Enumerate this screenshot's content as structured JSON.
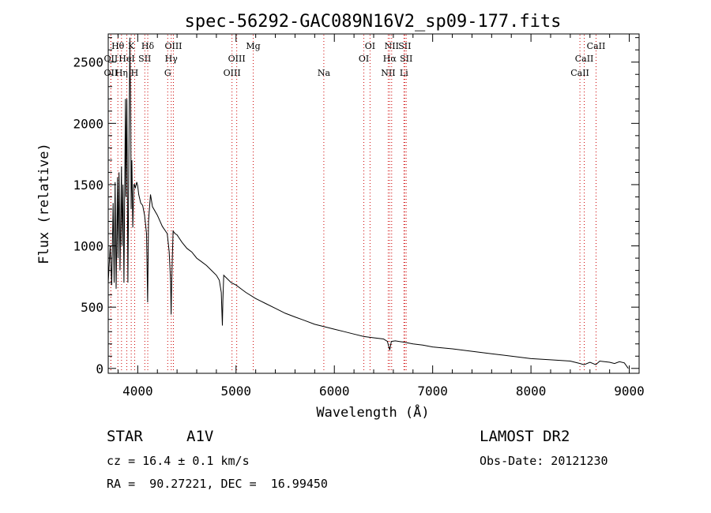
{
  "chart_data": {
    "type": "line",
    "title": "spec-56292-GAC089N16V2_sp09-177.fits",
    "xlabel": "Wavelength (Å)",
    "ylabel": "Flux (relative)",
    "xlim": [
      3700,
      9100
    ],
    "ylim": [
      -40,
      2730
    ],
    "xticks": [
      4000,
      5000,
      6000,
      7000,
      8000,
      9000
    ],
    "xtick_labels": [
      "4000",
      "5000",
      "6000",
      "7000",
      "8000",
      "9000"
    ],
    "yticks": [
      0,
      500,
      1000,
      1500,
      2000,
      2500
    ],
    "ytick_labels": [
      "0",
      "500",
      "1000",
      "1500",
      "2000",
      "2500"
    ],
    "grid": false,
    "line_color": "#000000",
    "marker_color": "#cc0000",
    "series": [
      {
        "x": [
          3700,
          3720,
          3735,
          3750,
          3760,
          3770,
          3780,
          3795,
          3800,
          3810,
          3820,
          3835,
          3840,
          3850,
          3860,
          3875,
          3880,
          3890,
          3900,
          3910,
          3920,
          3930,
          3933,
          3940,
          3950,
          3960,
          3968,
          3975,
          3990,
          4000,
          4010,
          4030,
          4050,
          4070,
          4090,
          4101,
          4110,
          4130,
          4150,
          4200,
          4250,
          4300,
          4320,
          4335,
          4340,
          4345,
          4360,
          4380,
          4400,
          4450,
          4500,
          4550,
          4600,
          4650,
          4700,
          4750,
          4800,
          4830,
          4850,
          4855,
          4861,
          4866,
          4875,
          4900,
          4950,
          5000,
          5050,
          5100,
          5200,
          5300,
          5400,
          5500,
          5600,
          5700,
          5800,
          5900,
          6000,
          6100,
          6200,
          6300,
          6400,
          6500,
          6540,
          6563,
          6580,
          6620,
          6700,
          6800,
          6900,
          7000,
          7200,
          7400,
          7600,
          7800,
          8000,
          8200,
          8400,
          8500,
          8540,
          8600,
          8660,
          8700,
          8800,
          8850,
          8900,
          8950,
          8990
        ],
        "y": [
          700,
          1000,
          680,
          1350,
          700,
          1520,
          650,
          1560,
          900,
          1600,
          800,
          1650,
          1000,
          1500,
          700,
          2200,
          1400,
          2200,
          700,
          1700,
          2700,
          1950,
          1300,
          1700,
          1150,
          1500,
          1500,
          1470,
          1520,
          1490,
          1420,
          1350,
          1330,
          1250,
          1100,
          540,
          1200,
          1420,
          1320,
          1250,
          1160,
          1100,
          950,
          700,
          440,
          700,
          1120,
          1100,
          1090,
          1030,
          980,
          950,
          900,
          870,
          840,
          800,
          760,
          720,
          620,
          500,
          350,
          550,
          760,
          740,
          700,
          680,
          650,
          620,
          570,
          530,
          490,
          450,
          420,
          390,
          360,
          340,
          320,
          300,
          280,
          260,
          250,
          240,
          220,
          150,
          220,
          225,
          215,
          200,
          190,
          175,
          160,
          140,
          120,
          100,
          80,
          70,
          60,
          40,
          30,
          50,
          30,
          60,
          50,
          40,
          55,
          45,
          0
        ]
      }
    ],
    "lines": [
      {
        "label": "Hθ",
        "x": 3798,
        "row": 1
      },
      {
        "label": "OII",
        "x": 3727,
        "row": 2
      },
      {
        "label": "OII",
        "x": 3727,
        "row": 3
      },
      {
        "label": "K",
        "x": 3934,
        "row": 1
      },
      {
        "label": "HeI",
        "x": 3889,
        "row": 2
      },
      {
        "label": "Hη",
        "x": 3835,
        "row": 3
      },
      {
        "label": "Hδ",
        "x": 4102,
        "row": 1
      },
      {
        "label": "SII",
        "x": 4072,
        "row": 2
      },
      {
        "label": "H",
        "x": 3969,
        "row": 3
      },
      {
        "label": "OIII",
        "x": 4363,
        "row": 1
      },
      {
        "label": "Hγ",
        "x": 4341,
        "row": 2
      },
      {
        "label": "G",
        "x": 4305,
        "row": 3
      },
      {
        "label": "Mg",
        "x": 5175,
        "row": 1
      },
      {
        "label": "OIII",
        "x": 5007,
        "row": 2
      },
      {
        "label": "OIII",
        "x": 4959,
        "row": 3
      },
      {
        "label": "Na",
        "x": 5893,
        "row": 3
      },
      {
        "label": "OI",
        "x": 6363,
        "row": 1
      },
      {
        "label": "OI",
        "x": 6300,
        "row": 2
      },
      {
        "label": "NII",
        "x": 6583,
        "row": 1
      },
      {
        "label": "SII",
        "x": 6716,
        "row": 1
      },
      {
        "label": "Hα",
        "x": 6563,
        "row": 2
      },
      {
        "label": "SII",
        "x": 6731,
        "row": 2
      },
      {
        "label": "NII",
        "x": 6548,
        "row": 3
      },
      {
        "label": "Li",
        "x": 6708,
        "row": 3
      },
      {
        "label": "CaII",
        "x": 8662,
        "row": 1
      },
      {
        "label": "CaII",
        "x": 8542,
        "row": 2
      },
      {
        "label": "CaII",
        "x": 8498,
        "row": 3
      }
    ]
  },
  "info": {
    "object_class": "STAR",
    "subclass": "A1V",
    "survey": "LAMOST DR2",
    "cz": "cz = 16.4 ± 0.1 km/s",
    "obs_date": "Obs-Date: 20121230",
    "coords": "RA =  90.27221, DEC =  16.99450"
  }
}
